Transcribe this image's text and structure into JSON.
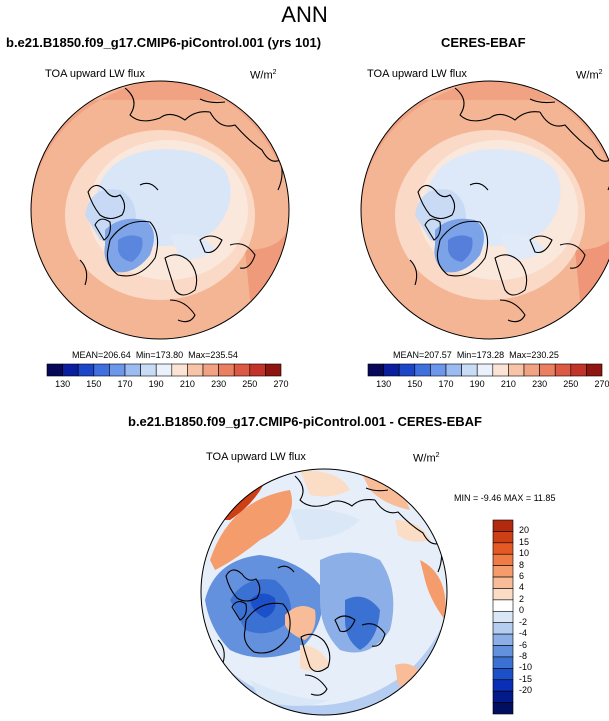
{
  "title": "ANN",
  "panels": [
    {
      "title": "b.e21.B1850.f09_g17.CMIP6-piControl.001 (yrs 101)",
      "variable": "TOA upward LW flux",
      "units_base": "W/m",
      "units_exp": "2",
      "stats": {
        "mean_label": "MEAN=",
        "mean": "206.64",
        "min_label": "Min=",
        "min": "173.80",
        "max_label": "Max=",
        "max": "235.54"
      }
    },
    {
      "title": "CERES-EBAF",
      "variable": "TOA upward LW flux",
      "units_base": "W/m",
      "units_exp": "2",
      "stats": {
        "mean_label": "MEAN=",
        "mean": "207.57",
        "min_label": "Min=",
        "min": "173.28",
        "max_label": "Max=",
        "max": "230.25"
      }
    }
  ],
  "abs_colorbar": {
    "colors": [
      "#08085a",
      "#0b1e9e",
      "#1c45c8",
      "#3f70de",
      "#6d97ea",
      "#9cbbf0",
      "#c9dcf6",
      "#eaf1fb",
      "#fbe4d6",
      "#f7c4a8",
      "#f1a283",
      "#ea7f62",
      "#dc5a44",
      "#c2332a",
      "#8f1510"
    ],
    "tick_labels": [
      "130",
      "150",
      "170",
      "190",
      "210",
      "230",
      "250",
      "270"
    ]
  },
  "diff_panel": {
    "title": "b.e21.B1850.f09_g17.CMIP6-piControl.001 - CERES-EBAF",
    "variable": "TOA upward LW flux",
    "units_base": "W/m",
    "units_exp": "2",
    "stats": {
      "min_label": "MIN =",
      "min": "-9.46",
      "max_label": "MAX =",
      "max": "11.85"
    }
  },
  "diff_colorbar": {
    "colors": [
      "#b12a0f",
      "#cd3f15",
      "#e55a24",
      "#f07c45",
      "#f49c6c",
      "#f8bd98",
      "#fbdcc4",
      "#ffffff",
      "#d9e7f7",
      "#b5cdf0",
      "#8cafe7",
      "#6391dd",
      "#3c71d4",
      "#1c50c9",
      "#0a2fb6",
      "#031a8a",
      "#020f5e"
    ],
    "tick_labels": [
      "20",
      "15",
      "10",
      "8",
      "6",
      "4",
      "2",
      "0",
      "-2",
      "-4",
      "-6",
      "-8",
      "-10",
      "-15",
      "-20"
    ]
  }
}
